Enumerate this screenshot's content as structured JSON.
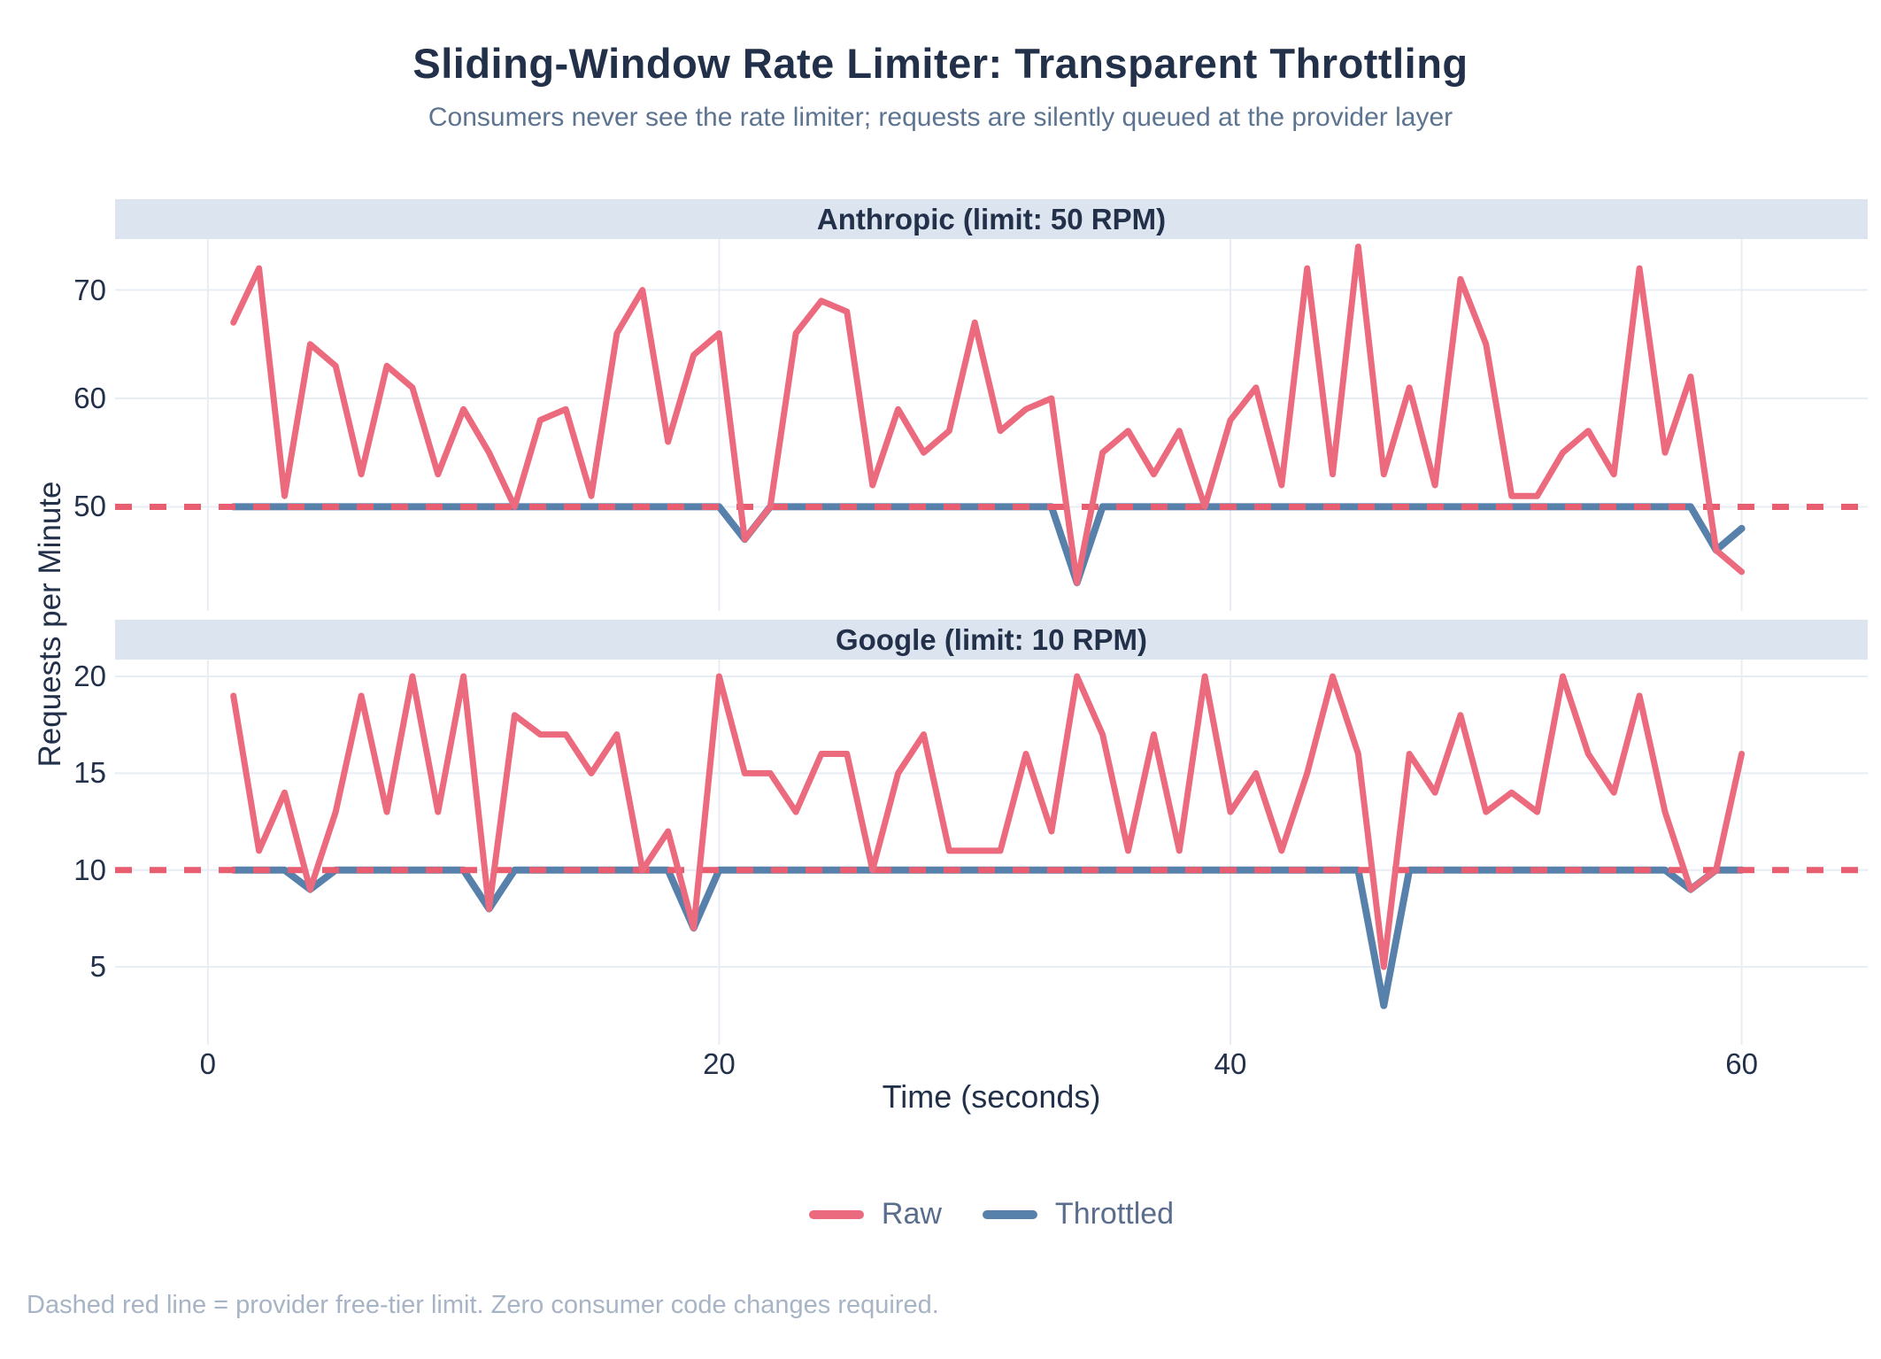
{
  "title": "Sliding-Window Rate Limiter: Transparent Throttling",
  "subtitle": "Consumers never see the rate limiter; requests are silently queued at the provider layer",
  "footer": "Dashed red line = provider free-tier limit. Zero consumer code changes required.",
  "colors": {
    "raw": "#ec6a7d",
    "throttled": "#5781ab",
    "limit_dash": "#e95d70",
    "grid": "#e8edf4",
    "strip_bg": "#dce4ef",
    "title_text": "#22304a",
    "subtitle_text": "#5d7490",
    "legend_text": "#5a6d8c",
    "footer_text": "#a7b4c6"
  },
  "chart_data": {
    "type": "line",
    "xlabel": "Time (seconds)",
    "ylabel": "Requests per Minute",
    "xticks": [
      0,
      20,
      40,
      60
    ],
    "xlim": [
      -3.63,
      64.93
    ],
    "legend": [
      {
        "label": "Raw",
        "color": "#ec6a7d"
      },
      {
        "label": "Throttled",
        "color": "#5781ab"
      }
    ],
    "x_seconds": [
      1,
      2,
      3,
      4,
      5,
      6,
      7,
      8,
      9,
      10,
      11,
      12,
      13,
      14,
      15,
      16,
      17,
      18,
      19,
      20,
      21,
      22,
      23,
      24,
      25,
      26,
      27,
      28,
      29,
      30,
      31,
      32,
      33,
      34,
      35,
      36,
      37,
      38,
      39,
      40,
      41,
      42,
      43,
      44,
      45,
      46,
      47,
      48,
      49,
      50,
      51,
      52,
      53,
      54,
      55,
      56,
      57,
      58,
      59,
      60
    ],
    "panels": [
      {
        "title": "Anthropic (limit: 50 RPM)",
        "limit": 50,
        "yticks": [
          70,
          60,
          50
        ],
        "ylim": [
          40.4,
          74.7
        ],
        "series": {
          "raw": [
            67,
            72,
            51,
            65,
            63,
            53,
            63,
            61,
            53,
            59,
            55,
            50,
            58,
            59,
            51,
            66,
            70,
            56,
            64,
            66,
            47,
            50,
            66,
            69,
            68,
            52,
            59,
            55,
            57,
            67,
            57,
            59,
            60,
            43,
            55,
            57,
            53,
            57,
            50,
            58,
            61,
            52,
            72,
            53,
            74,
            53,
            61,
            52,
            71,
            65,
            51,
            51,
            55,
            57,
            53,
            72,
            55,
            62,
            46,
            44
          ],
          "throttled": [
            50,
            50,
            50,
            50,
            50,
            50,
            50,
            50,
            50,
            50,
            50,
            50,
            50,
            50,
            50,
            50,
            50,
            50,
            50,
            50,
            47,
            50,
            50,
            50,
            50,
            50,
            50,
            50,
            50,
            50,
            50,
            50,
            50,
            43,
            50,
            50,
            50,
            50,
            50,
            50,
            50,
            50,
            50,
            50,
            50,
            50,
            50,
            50,
            50,
            50,
            50,
            50,
            50,
            50,
            50,
            50,
            50,
            50,
            46,
            48
          ]
        }
      },
      {
        "title": "Google (limit: 10 RPM)",
        "limit": 10,
        "yticks": [
          20,
          15,
          10,
          5
        ],
        "ylim": [
          0.98,
          20.87
        ],
        "series": {
          "raw": [
            19,
            11,
            14,
            9,
            13,
            19,
            13,
            20,
            13,
            20,
            8,
            18,
            17,
            17,
            15,
            17,
            10,
            12,
            7,
            20,
            15,
            15,
            13,
            16,
            16,
            10,
            15,
            17,
            11,
            11,
            11,
            16,
            12,
            20,
            17,
            11,
            17,
            11,
            20,
            13,
            15,
            11,
            15,
            20,
            16,
            5,
            16,
            14,
            18,
            13,
            14,
            13,
            20,
            16,
            14,
            19,
            13,
            9,
            10,
            16
          ],
          "throttled": [
            10,
            10,
            10,
            9,
            10,
            10,
            10,
            10,
            10,
            10,
            8,
            10,
            10,
            10,
            10,
            10,
            10,
            10,
            7,
            10,
            10,
            10,
            10,
            10,
            10,
            10,
            10,
            10,
            10,
            10,
            10,
            10,
            10,
            10,
            10,
            10,
            10,
            10,
            10,
            10,
            10,
            10,
            10,
            10,
            10,
            3,
            10,
            10,
            10,
            10,
            10,
            10,
            10,
            10,
            10,
            10,
            10,
            9,
            10,
            10
          ]
        }
      }
    ]
  }
}
